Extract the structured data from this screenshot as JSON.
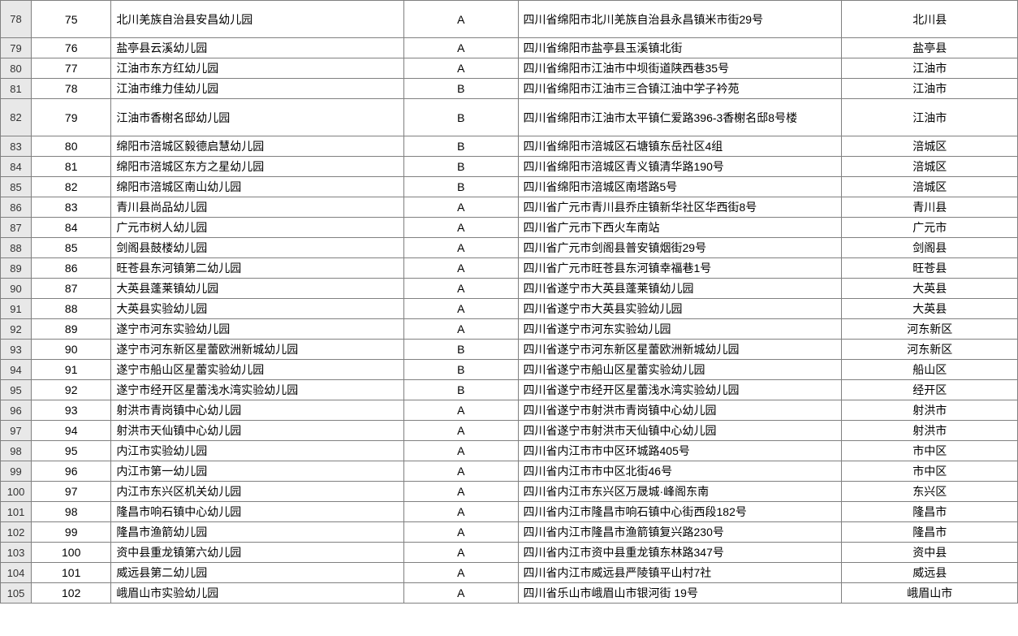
{
  "rows": [
    {
      "rownum": "78",
      "tall": true,
      "seq": "75",
      "name": "北川羌族自治县安昌幼儿园",
      "grade": "A",
      "address": "四川省绵阳市北川羌族自治县永昌镇米市街29号",
      "county": "北川县"
    },
    {
      "rownum": "79",
      "tall": false,
      "seq": "76",
      "name": "盐亭县云溪幼儿园",
      "grade": "A",
      "address": "四川省绵阳市盐亭县玉溪镇北街",
      "county": "盐亭县"
    },
    {
      "rownum": "80",
      "tall": false,
      "seq": "77",
      "name": "江油市东方红幼儿园",
      "grade": "A",
      "address": "四川省绵阳市江油市中坝街道陕西巷35号",
      "county": "江油市"
    },
    {
      "rownum": "81",
      "tall": false,
      "seq": "78",
      "name": "江油市维力佳幼儿园",
      "grade": "B",
      "address": "四川省绵阳市江油市三合镇江油中学子衿苑",
      "county": "江油市"
    },
    {
      "rownum": "82",
      "tall": true,
      "seq": "79",
      "name": "江油市香榭名邸幼儿园",
      "grade": "B",
      "address": "四川省绵阳市江油市太平镇仁爱路396-3香榭名邸8号楼",
      "county": "江油市"
    },
    {
      "rownum": "83",
      "tall": false,
      "seq": "80",
      "name": "绵阳市涪城区毅德启慧幼儿园",
      "grade": "B",
      "address": "四川省绵阳市涪城区石塘镇东岳社区4组",
      "county": "涪城区"
    },
    {
      "rownum": "84",
      "tall": false,
      "seq": "81",
      "name": "绵阳市涪城区东方之星幼儿园",
      "grade": "B",
      "address": "四川省绵阳市涪城区青义镇清华路190号",
      "county": "涪城区"
    },
    {
      "rownum": "85",
      "tall": false,
      "seq": "82",
      "name": "绵阳市涪城区南山幼儿园",
      "grade": "B",
      "address": "四川省绵阳市涪城区南塔路5号",
      "county": "涪城区"
    },
    {
      "rownum": "86",
      "tall": false,
      "seq": "83",
      "name": "青川县尚品幼儿园",
      "grade": "A",
      "address": "四川省广元市青川县乔庄镇新华社区华西街8号",
      "county": "青川县"
    },
    {
      "rownum": "87",
      "tall": false,
      "seq": "84",
      "name": "广元市树人幼儿园",
      "grade": "A",
      "address": "四川省广元市下西火车南站",
      "county": "广元市"
    },
    {
      "rownum": "88",
      "tall": false,
      "seq": "85",
      "name": "剑阁县鼓楼幼儿园",
      "grade": "A",
      "address": "四川省广元市剑阁县普安镇烟街29号",
      "county": "剑阁县"
    },
    {
      "rownum": "89",
      "tall": false,
      "seq": "86",
      "name": "旺苍县东河镇第二幼儿园",
      "grade": "A",
      "address": "四川省广元市旺苍县东河镇幸福巷1号",
      "county": "旺苍县"
    },
    {
      "rownum": "90",
      "tall": false,
      "seq": "87",
      "name": "大英县蓬莱镇幼儿园",
      "grade": "A",
      "address": "四川省遂宁市大英县蓬莱镇幼儿园",
      "county": "大英县"
    },
    {
      "rownum": "91",
      "tall": false,
      "seq": "88",
      "name": "大英县实验幼儿园",
      "grade": "A",
      "address": "四川省遂宁市大英县实验幼儿园",
      "county": "大英县"
    },
    {
      "rownum": "92",
      "tall": false,
      "seq": "89",
      "name": "遂宁市河东实验幼儿园",
      "grade": "A",
      "address": "四川省遂宁市河东实验幼儿园",
      "county": "河东新区"
    },
    {
      "rownum": "93",
      "tall": false,
      "seq": "90",
      "name": "遂宁市河东新区星蕾欧洲新城幼儿园",
      "grade": "B",
      "address": "四川省遂宁市河东新区星蕾欧洲新城幼儿园",
      "county": "河东新区"
    },
    {
      "rownum": "94",
      "tall": false,
      "seq": "91",
      "name": "遂宁市船山区星蕾实验幼儿园",
      "grade": "B",
      "address": "四川省遂宁市船山区星蕾实验幼儿园",
      "county": "船山区"
    },
    {
      "rownum": "95",
      "tall": false,
      "seq": "92",
      "name": "遂宁市经开区星蕾浅水湾实验幼儿园",
      "grade": "B",
      "address": "四川省遂宁市经开区星蕾浅水湾实验幼儿园",
      "county": "经开区"
    },
    {
      "rownum": "96",
      "tall": false,
      "seq": "93",
      "name": "射洪市青岗镇中心幼儿园",
      "grade": "A",
      "address": "四川省遂宁市射洪市青岗镇中心幼儿园",
      "county": "射洪市"
    },
    {
      "rownum": "97",
      "tall": false,
      "seq": "94",
      "name": "射洪市天仙镇中心幼儿园",
      "grade": "A",
      "address": "四川省遂宁市射洪市天仙镇中心幼儿园",
      "county": "射洪市"
    },
    {
      "rownum": "98",
      "tall": false,
      "seq": "95",
      "name": "内江市实验幼儿园",
      "grade": "A",
      "address": "四川省内江市市中区环城路405号",
      "county": "市中区"
    },
    {
      "rownum": "99",
      "tall": false,
      "seq": "96",
      "name": "内江市第一幼儿园",
      "grade": "A",
      "address": "四川省内江市市中区北街46号",
      "county": "市中区"
    },
    {
      "rownum": "100",
      "tall": false,
      "seq": "97",
      "name": "内江市东兴区机关幼儿园",
      "grade": "A",
      "address": "四川省内江市东兴区万晟城·峰阁东南",
      "county": "东兴区"
    },
    {
      "rownum": "101",
      "tall": false,
      "seq": "98",
      "name": "隆昌市响石镇中心幼儿园",
      "grade": "A",
      "address": "四川省内江市隆昌市响石镇中心街西段182号",
      "county": "隆昌市"
    },
    {
      "rownum": "102",
      "tall": false,
      "seq": "99",
      "name": "隆昌市渔箭幼儿园",
      "grade": "A",
      "address": "四川省内江市隆昌市渔箭镇复兴路230号",
      "county": "隆昌市"
    },
    {
      "rownum": "103",
      "tall": false,
      "seq": "100",
      "name": "资中县重龙镇第六幼儿园",
      "grade": "A",
      "address": "四川省内江市资中县重龙镇东林路347号",
      "county": "资中县"
    },
    {
      "rownum": "104",
      "tall": false,
      "seq": "101",
      "name": "威远县第二幼儿园",
      "grade": "A",
      "address": "四川省内江市威远县严陵镇平山村7社",
      "county": "威远县"
    },
    {
      "rownum": "105",
      "tall": false,
      "seq": "102",
      "name": "峨眉山市实验幼儿园",
      "grade": "A",
      "address": "四川省乐山市峨眉山市银河街 19号",
      "county": "峨眉山市"
    }
  ]
}
